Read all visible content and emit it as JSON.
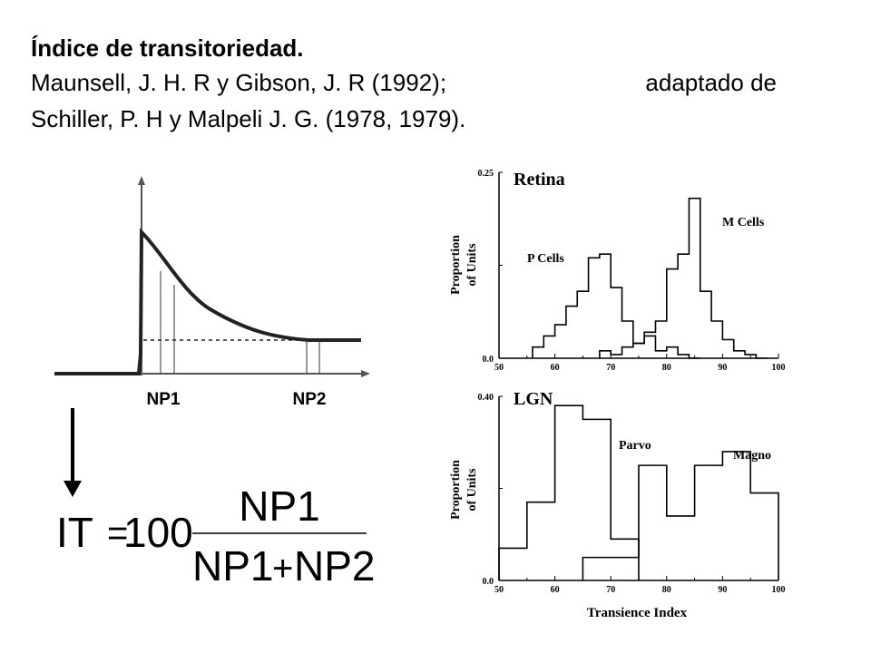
{
  "header": {
    "title": "Índice de transitoriedad.",
    "citation_line1_a": "Maunsell, J. H. R y Gibson, J. R (1992);",
    "citation_line1_b": "adaptado de",
    "citation_line2": "Schiller, P. H y Malpeli  J. G. (1978, 1979)."
  },
  "diagram": {
    "np1_label": "NP1",
    "np2_label": "NP2",
    "formula": {
      "lhs": "IT",
      "equals": "=",
      "constant": "100",
      "numerator": "NP1",
      "denominator_a": "NP1",
      "denominator_op": "+",
      "denominator_b": "NP2"
    }
  },
  "chart_data": [
    {
      "type": "histogram",
      "title": "Retina",
      "ylabel": "Proportion of Units",
      "ylabel_line1": "Proportion",
      "ylabel_line2": "of Units",
      "xlabel": "",
      "xlim": [
        50,
        100
      ],
      "ylim": [
        0,
        0.25
      ],
      "xticks": [
        "50",
        "60",
        "70",
        "80",
        "90",
        "100"
      ],
      "yticks_labeled": [
        "0.0",
        "0.25"
      ],
      "bin_width": 2,
      "series": [
        {
          "name": "P Cells",
          "x": [
            56,
            58,
            60,
            62,
            64,
            66,
            68,
            70,
            72,
            74,
            76,
            78,
            80,
            82,
            84
          ],
          "values": [
            0.015,
            0.03,
            0.045,
            0.07,
            0.09,
            0.135,
            0.14,
            0.095,
            0.05,
            0.02,
            0.03,
            0.01,
            0.015,
            0.005,
            0.0
          ]
        },
        {
          "name": "M Cells",
          "x": [
            68,
            70,
            72,
            74,
            76,
            78,
            80,
            82,
            84,
            86,
            88,
            90,
            92,
            94,
            96
          ],
          "values": [
            0.01,
            0.005,
            0.015,
            0.02,
            0.035,
            0.05,
            0.12,
            0.14,
            0.215,
            0.09,
            0.05,
            0.025,
            0.01,
            0.005,
            0.0
          ]
        }
      ]
    },
    {
      "type": "histogram",
      "title": "LGN",
      "ylabel": "Proportion of Units",
      "ylabel_line1": "Proportion",
      "ylabel_line2": "of Units",
      "xlabel": "Transience Index",
      "xlim": [
        50,
        100
      ],
      "ylim": [
        0,
        0.4
      ],
      "xticks": [
        "50",
        "60",
        "70",
        "80",
        "90",
        "100"
      ],
      "yticks_labeled": [
        "0.0",
        "0.40"
      ],
      "bin_width": 5,
      "series": [
        {
          "name": "Parvo",
          "x": [
            50,
            55,
            60,
            65,
            70
          ],
          "values": [
            0.07,
            0.17,
            0.38,
            0.35,
            0.09
          ]
        },
        {
          "name": "Magno",
          "x": [
            65,
            70,
            75,
            80,
            85,
            90,
            95
          ],
          "values": [
            0.05,
            0.05,
            0.25,
            0.14,
            0.25,
            0.28,
            0.19
          ]
        }
      ]
    }
  ]
}
